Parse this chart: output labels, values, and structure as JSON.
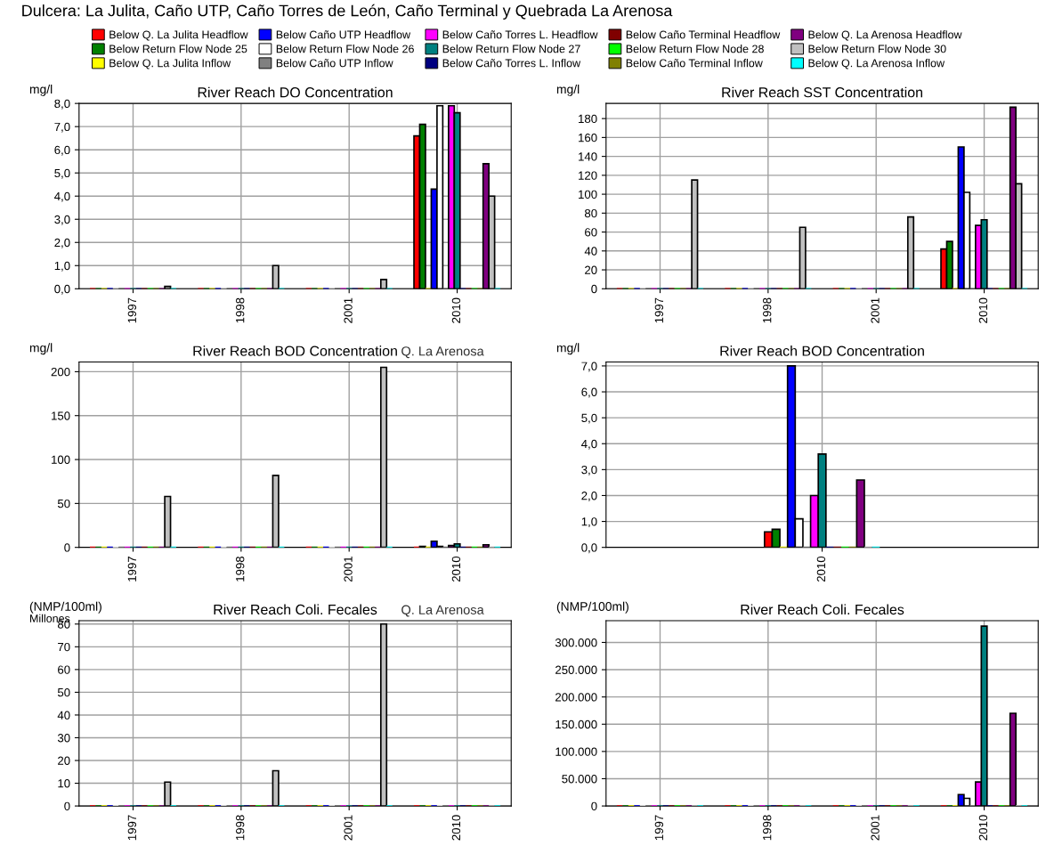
{
  "chart_data": [
    {
      "type": "bar",
      "title": "River Reach DO Concentration",
      "ylabel": "mg/l",
      "categories": [
        "1997",
        "1998",
        "2001",
        "2010"
      ],
      "ylim": [
        0,
        8
      ],
      "yticks": [
        {
          "value": 0,
          "label": "0,0"
        },
        {
          "value": 1,
          "label": "1,0"
        },
        {
          "value": 2,
          "label": "2,0"
        },
        {
          "value": 3,
          "label": "3,0"
        },
        {
          "value": 4,
          "label": "4,0"
        },
        {
          "value": 5,
          "label": "5,0"
        },
        {
          "value": 6,
          "label": "6,0"
        },
        {
          "value": 7,
          "label": "7,0"
        },
        {
          "value": 8,
          "label": "8,0"
        }
      ],
      "grid": true,
      "legend": "top",
      "annotations": [
        "Dulcera: La Julita, Caño UTP, Caño Torres de León, Caño Terminal y Quebrada La Arenosa"
      ],
      "series": [
        {
          "name": "Below Q. La Julita Headflow",
          "color": "#ff0000",
          "values": [
            0,
            0,
            0,
            6.6
          ]
        },
        {
          "name": "Below Return Flow Node 25",
          "color": "#008000",
          "values": [
            0,
            0,
            0,
            7.1
          ]
        },
        {
          "name": "Below Q. La Julita Inflow",
          "color": "#ffff00",
          "values": [
            0,
            0,
            0,
            0
          ]
        },
        {
          "name": "Below Caño UTP Headflow",
          "color": "#0000ff",
          "values": [
            0,
            0,
            0,
            4.3
          ]
        },
        {
          "name": "Below Return Flow Node 26",
          "color": "#ffffff",
          "values": [
            0,
            0,
            0,
            7.9
          ]
        },
        {
          "name": "Below Caño UTP Inflow",
          "color": "#808080",
          "values": [
            0,
            0,
            0,
            0
          ]
        },
        {
          "name": "Below Caño Torres L. Headflow",
          "color": "#ff00ff",
          "values": [
            0,
            0,
            0,
            7.9
          ]
        },
        {
          "name": "Below Return Flow Node 27",
          "color": "#008080",
          "values": [
            0,
            0,
            0,
            7.6
          ]
        },
        {
          "name": "Below Caño Torres L. Inflow",
          "color": "#000080",
          "values": [
            0,
            0,
            0,
            0
          ]
        },
        {
          "name": "Below Caño Terminal Headflow",
          "color": "#800000",
          "values": [
            0,
            0,
            0,
            0
          ]
        },
        {
          "name": "Below Return Flow Node 28",
          "color": "#00ff00",
          "values": [
            0,
            0,
            0,
            0
          ]
        },
        {
          "name": "Below Caño Terminal Inflow",
          "color": "#808000",
          "values": [
            0,
            0,
            0,
            0
          ]
        },
        {
          "name": "Below Q. La Arenosa Headflow",
          "color": "#800080",
          "values": [
            0,
            0,
            0,
            5.4
          ]
        },
        {
          "name": "Below Return Flow Node 30",
          "color": "#c0c0c0",
          "values": [
            0.1,
            1.0,
            0.4,
            4.0
          ]
        },
        {
          "name": "Below Q. La Arenosa Inflow",
          "color": "#00ffff",
          "values": [
            0,
            0,
            0,
            0
          ]
        }
      ]
    },
    {
      "type": "bar",
      "title": "River Reach SST Concentration",
      "ylabel": "mg/l",
      "categories": [
        "1997",
        "1998",
        "2001",
        "2010"
      ],
      "ylim": [
        0,
        196
      ],
      "yticks": [
        0,
        20,
        40,
        60,
        80,
        100,
        120,
        140,
        160,
        180
      ],
      "grid": true,
      "series": [
        {
          "color": "#ff0000",
          "values": [
            0,
            0,
            0,
            42
          ]
        },
        {
          "color": "#008000",
          "values": [
            0,
            0,
            0,
            50
          ]
        },
        {
          "color": "#ffff00",
          "values": [
            0,
            0,
            0,
            0
          ]
        },
        {
          "color": "#0000ff",
          "values": [
            0,
            0,
            0,
            150
          ]
        },
        {
          "color": "#ffffff",
          "values": [
            0,
            0,
            0,
            102
          ]
        },
        {
          "color": "#808080",
          "values": [
            0,
            0,
            0,
            0
          ]
        },
        {
          "color": "#ff00ff",
          "values": [
            0,
            0,
            0,
            67
          ]
        },
        {
          "color": "#008080",
          "values": [
            0,
            0,
            0,
            73
          ]
        },
        {
          "color": "#000080",
          "values": [
            0,
            0,
            0,
            0
          ]
        },
        {
          "color": "#800000",
          "values": [
            0,
            0,
            0,
            0
          ]
        },
        {
          "color": "#00ff00",
          "values": [
            0,
            0,
            0,
            0
          ]
        },
        {
          "color": "#808000",
          "values": [
            0,
            0,
            0,
            0
          ]
        },
        {
          "color": "#800080",
          "values": [
            0,
            0,
            0,
            192
          ]
        },
        {
          "color": "#c0c0c0",
          "values": [
            115,
            65,
            76,
            111
          ]
        },
        {
          "color": "#00ffff",
          "values": [
            0,
            0,
            0,
            0
          ]
        }
      ]
    },
    {
      "type": "bar",
      "title": "River Reach BOD Concentration",
      "subtitle": "Q. La Arenosa",
      "ylabel": "mg/l",
      "categories": [
        "1997",
        "1998",
        "2001",
        "2010"
      ],
      "ylim": [
        0,
        211
      ],
      "yticks": [
        0,
        50,
        100,
        150,
        200
      ],
      "grid": true,
      "series": [
        {
          "color": "#ff0000",
          "values": [
            0,
            0,
            0,
            null
          ]
        },
        {
          "color": "#008000",
          "values": [
            0,
            0,
            0,
            1
          ]
        },
        {
          "color": "#ffff00",
          "values": [
            0,
            0,
            0,
            0
          ]
        },
        {
          "color": "#0000ff",
          "values": [
            0,
            0,
            0,
            7
          ]
        },
        {
          "color": "#ffffff",
          "values": [
            0,
            0,
            0,
            1
          ]
        },
        {
          "color": "#808080",
          "values": [
            0,
            0,
            0,
            0
          ]
        },
        {
          "color": "#ff00ff",
          "values": [
            0,
            0,
            0,
            2
          ]
        },
        {
          "color": "#008080",
          "values": [
            0,
            0,
            0,
            4
          ]
        },
        {
          "color": "#000080",
          "values": [
            0,
            0,
            0,
            0
          ]
        },
        {
          "color": "#800000",
          "values": [
            0,
            0,
            0,
            0
          ]
        },
        {
          "color": "#00ff00",
          "values": [
            0,
            0,
            0,
            0
          ]
        },
        {
          "color": "#808000",
          "values": [
            0,
            0,
            0,
            0
          ]
        },
        {
          "color": "#800080",
          "values": [
            0,
            0,
            0,
            3
          ]
        },
        {
          "color": "#c0c0c0",
          "values": [
            58,
            82,
            205,
            0
          ]
        },
        {
          "color": "#00ffff",
          "values": [
            0,
            0,
            0,
            0
          ]
        }
      ]
    },
    {
      "type": "bar",
      "title": "River Reach BOD Concentration",
      "ylabel": "mg/l",
      "categories": [
        "2010"
      ],
      "ylim": [
        0,
        7.15
      ],
      "yticks": [
        {
          "value": 0,
          "label": "0,0"
        },
        {
          "value": 1,
          "label": "1,0"
        },
        {
          "value": 2,
          "label": "2,0"
        },
        {
          "value": 3,
          "label": "3,0"
        },
        {
          "value": 4,
          "label": "4,0"
        },
        {
          "value": 5,
          "label": "5,0"
        },
        {
          "value": 6,
          "label": "6,0"
        },
        {
          "value": 7,
          "label": "7,0"
        }
      ],
      "grid": true,
      "series": [
        {
          "color": "#ff0000",
          "values": [
            0.6
          ]
        },
        {
          "color": "#008000",
          "values": [
            0.7
          ]
        },
        {
          "color": "#ffff00",
          "values": [
            0
          ]
        },
        {
          "color": "#0000ff",
          "values": [
            7.0
          ]
        },
        {
          "color": "#ffffff",
          "values": [
            1.1
          ]
        },
        {
          "color": "#808080",
          "values": [
            0
          ]
        },
        {
          "color": "#ff00ff",
          "values": [
            2.0
          ]
        },
        {
          "color": "#008080",
          "values": [
            3.6
          ]
        },
        {
          "color": "#000080",
          "values": [
            0
          ]
        },
        {
          "color": "#800000",
          "values": [
            0
          ]
        },
        {
          "color": "#00ff00",
          "values": [
            0
          ]
        },
        {
          "color": "#808000",
          "values": [
            0
          ]
        },
        {
          "color": "#800080",
          "values": [
            2.6
          ]
        },
        {
          "color": "#c0c0c0",
          "values": [
            0
          ]
        },
        {
          "color": "#00ffff",
          "values": [
            0
          ]
        }
      ]
    },
    {
      "type": "bar",
      "title": "River Reach Coli. Fecales",
      "subtitle": "Q. La Arenosa",
      "ylabel": "(NMP/100ml)",
      "annotations": [
        "Millones"
      ],
      "categories": [
        "1997",
        "1998",
        "2001",
        "2010"
      ],
      "ylim": [
        0,
        81.5
      ],
      "yticks": [
        0,
        10,
        20,
        30,
        40,
        50,
        60,
        70,
        80
      ],
      "grid": true,
      "series": [
        {
          "color": "#ff0000",
          "values": [
            0,
            0,
            0,
            0
          ]
        },
        {
          "color": "#008000",
          "values": [
            0,
            0,
            0,
            0
          ]
        },
        {
          "color": "#ffff00",
          "values": [
            0,
            0,
            0,
            0
          ]
        },
        {
          "color": "#0000ff",
          "values": [
            0,
            0,
            0,
            0
          ]
        },
        {
          "color": "#ffffff",
          "values": [
            0,
            0,
            0,
            0
          ]
        },
        {
          "color": "#808080",
          "values": [
            0,
            0,
            0,
            0
          ]
        },
        {
          "color": "#ff00ff",
          "values": [
            0,
            0,
            0,
            0
          ]
        },
        {
          "color": "#008080",
          "values": [
            0,
            0,
            0,
            0
          ]
        },
        {
          "color": "#000080",
          "values": [
            0,
            0,
            0,
            0
          ]
        },
        {
          "color": "#800000",
          "values": [
            0,
            0,
            0,
            0
          ]
        },
        {
          "color": "#00ff00",
          "values": [
            0,
            0,
            0,
            0
          ]
        },
        {
          "color": "#808000",
          "values": [
            0,
            0,
            0,
            0
          ]
        },
        {
          "color": "#800080",
          "values": [
            0,
            0,
            0,
            0
          ]
        },
        {
          "color": "#c0c0c0",
          "values": [
            10.5,
            15.5,
            80,
            0
          ]
        },
        {
          "color": "#00ffff",
          "values": [
            0,
            0,
            0,
            0
          ]
        }
      ]
    },
    {
      "type": "bar",
      "title": "River Reach Coli. Fecales",
      "ylabel": "(NMP/100ml)",
      "categories": [
        "1997",
        "1998",
        "2001",
        "2010"
      ],
      "ylim": [
        0,
        340000
      ],
      "yticks": [
        0,
        {
          "value": 50000,
          "label": "50.000"
        },
        {
          "value": 100000,
          "label": "100.000"
        },
        {
          "value": 150000,
          "label": "150.000"
        },
        {
          "value": 200000,
          "label": "200.000"
        },
        {
          "value": 250000,
          "label": "250.000"
        },
        {
          "value": 300000,
          "label": "300.000"
        }
      ],
      "grid": true,
      "series": [
        {
          "color": "#ff0000",
          "values": [
            0,
            0,
            0,
            0
          ]
        },
        {
          "color": "#008000",
          "values": [
            0,
            0,
            0,
            0
          ]
        },
        {
          "color": "#ffff00",
          "values": [
            0,
            0,
            0,
            0
          ]
        },
        {
          "color": "#0000ff",
          "values": [
            0,
            0,
            0,
            21000
          ]
        },
        {
          "color": "#ffffff",
          "values": [
            0,
            0,
            0,
            14000
          ]
        },
        {
          "color": "#808080",
          "values": [
            0,
            0,
            0,
            0
          ]
        },
        {
          "color": "#ff00ff",
          "values": [
            0,
            0,
            0,
            44000
          ]
        },
        {
          "color": "#008080",
          "values": [
            0,
            0,
            0,
            330000
          ]
        },
        {
          "color": "#000080",
          "values": [
            0,
            0,
            0,
            0
          ]
        },
        {
          "color": "#800000",
          "values": [
            0,
            0,
            0,
            0
          ]
        },
        {
          "color": "#00ff00",
          "values": [
            0,
            0,
            0,
            0
          ]
        },
        {
          "color": "#808000",
          "values": [
            0,
            0,
            0,
            0
          ]
        },
        {
          "color": "#800080",
          "values": [
            0,
            0,
            0,
            170000
          ]
        },
        {
          "color": "#c0c0c0",
          "values": [
            0,
            0,
            0,
            0
          ]
        },
        {
          "color": "#00ffff",
          "values": [
            0,
            0,
            0,
            0
          ]
        }
      ]
    }
  ]
}
